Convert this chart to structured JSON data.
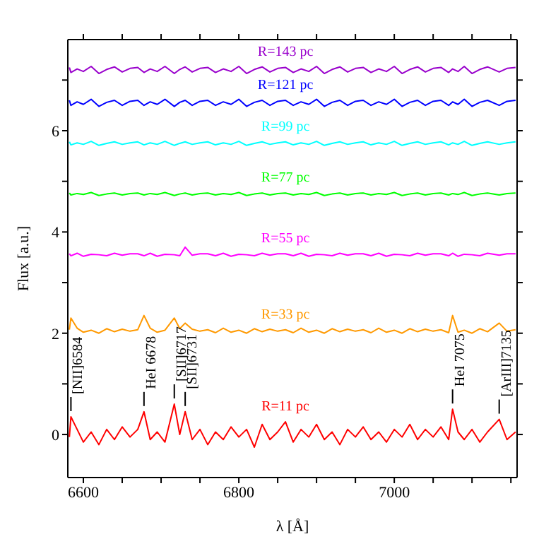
{
  "chart_data": {
    "type": "line",
    "xlabel": "λ [Å]",
    "ylabel": "Flux [a.u.]",
    "marker": "none",
    "xlim": [
      6580,
      7158
    ],
    "xticks": [
      6600,
      {
        "value": 6650,
        "label": null
      },
      {
        "value": 6700,
        "label": null
      },
      {
        "value": 6750,
        "label": null
      },
      6800,
      {
        "value": 6850,
        "label": null
      },
      {
        "value": 6900,
        "label": null
      },
      {
        "value": 6950,
        "label": null
      },
      7000,
      {
        "value": 7050,
        "label": null
      },
      {
        "value": 7100,
        "label": null
      },
      {
        "value": 7150,
        "label": null
      }
    ],
    "ylim": [
      -0.85,
      7.8
    ],
    "yticks": [
      0,
      {
        "value": 1,
        "label": null
      },
      2,
      {
        "value": 3,
        "label": null
      },
      4,
      {
        "value": 5,
        "label": null
      },
      6,
      {
        "value": 7,
        "label": null
      }
    ],
    "x": [
      6582,
      6584,
      6592,
      6600,
      6610,
      6620,
      6630,
      6640,
      6650,
      6660,
      6670,
      6678,
      6686,
      6695,
      6705,
      6717,
      6724,
      6731,
      6740,
      6750,
      6760,
      6770,
      6780,
      6790,
      6800,
      6810,
      6820,
      6830,
      6840,
      6850,
      6860,
      6870,
      6880,
      6890,
      6900,
      6910,
      6920,
      6930,
      6940,
      6950,
      6960,
      6970,
      6980,
      6990,
      7000,
      7010,
      7020,
      7030,
      7040,
      7050,
      7060,
      7070,
      7075,
      7082,
      7090,
      7100,
      7110,
      7120,
      7135,
      7145,
      7156
    ],
    "series": [
      {
        "name": "R=11 pc",
        "color": "#ff0000",
        "values": [
          -0.05,
          0.35,
          0.1,
          -0.15,
          0.05,
          -0.2,
          0.1,
          -0.1,
          0.15,
          -0.05,
          0.1,
          0.45,
          -0.1,
          0.05,
          -0.15,
          0.6,
          0.0,
          0.45,
          -0.1,
          0.1,
          -0.2,
          0.05,
          -0.1,
          0.15,
          -0.05,
          0.1,
          -0.25,
          0.2,
          -0.1,
          0.05,
          0.25,
          -0.15,
          0.1,
          -0.05,
          0.2,
          -0.1,
          0.05,
          -0.2,
          0.1,
          -0.05,
          0.15,
          -0.1,
          0.05,
          -0.15,
          0.1,
          -0.05,
          0.2,
          -0.1,
          0.1,
          -0.05,
          0.15,
          -0.1,
          0.5,
          0.05,
          -0.1,
          0.1,
          -0.15,
          0.05,
          0.3,
          -0.1,
          0.05
        ]
      },
      {
        "name": "R=33 pc",
        "color": "#ff9900",
        "values": [
          2.07,
          2.3,
          2.1,
          2.02,
          2.06,
          2.0,
          2.09,
          2.03,
          2.08,
          2.04,
          2.07,
          2.35,
          2.1,
          2.02,
          2.06,
          2.3,
          2.09,
          2.2,
          2.08,
          2.04,
          2.07,
          2.01,
          2.1,
          2.02,
          2.06,
          2.0,
          2.09,
          2.03,
          2.08,
          2.04,
          2.07,
          2.01,
          2.1,
          2.02,
          2.06,
          2.0,
          2.09,
          2.03,
          2.08,
          2.04,
          2.07,
          2.01,
          2.1,
          2.02,
          2.06,
          2.0,
          2.09,
          2.03,
          2.08,
          2.04,
          2.07,
          2.01,
          2.35,
          2.02,
          2.06,
          2.0,
          2.09,
          2.03,
          2.2,
          2.04,
          2.07
        ]
      },
      {
        "name": "R=55 pc",
        "color": "#ff00ff",
        "values": [
          3.57,
          3.53,
          3.58,
          3.52,
          3.56,
          3.55,
          3.53,
          3.58,
          3.54,
          3.57,
          3.57,
          3.53,
          3.58,
          3.52,
          3.56,
          3.55,
          3.53,
          3.7,
          3.54,
          3.57,
          3.57,
          3.53,
          3.58,
          3.52,
          3.56,
          3.55,
          3.53,
          3.58,
          3.54,
          3.57,
          3.57,
          3.53,
          3.58,
          3.52,
          3.56,
          3.55,
          3.53,
          3.58,
          3.54,
          3.57,
          3.57,
          3.53,
          3.58,
          3.52,
          3.56,
          3.55,
          3.53,
          3.58,
          3.54,
          3.57,
          3.57,
          3.53,
          3.58,
          3.52,
          3.56,
          3.55,
          3.53,
          3.58,
          3.54,
          3.57,
          3.57
        ]
      },
      {
        "name": "R=77 pc",
        "color": "#00ff00",
        "values": [
          4.77,
          4.73,
          4.76,
          4.74,
          4.78,
          4.72,
          4.75,
          4.77,
          4.73,
          4.76,
          4.77,
          4.73,
          4.76,
          4.74,
          4.78,
          4.72,
          4.75,
          4.77,
          4.73,
          4.76,
          4.77,
          4.73,
          4.76,
          4.74,
          4.78,
          4.72,
          4.75,
          4.77,
          4.73,
          4.76,
          4.77,
          4.73,
          4.76,
          4.74,
          4.78,
          4.72,
          4.75,
          4.77,
          4.73,
          4.76,
          4.77,
          4.73,
          4.76,
          4.74,
          4.78,
          4.72,
          4.75,
          4.77,
          4.73,
          4.76,
          4.77,
          4.73,
          4.76,
          4.74,
          4.78,
          4.72,
          4.75,
          4.77,
          4.73,
          4.76,
          4.77
        ]
      },
      {
        "name": "R=99 pc",
        "color": "#00ffff",
        "values": [
          5.78,
          5.72,
          5.76,
          5.73,
          5.79,
          5.71,
          5.75,
          5.78,
          5.73,
          5.76,
          5.78,
          5.72,
          5.76,
          5.73,
          5.79,
          5.71,
          5.75,
          5.78,
          5.73,
          5.76,
          5.78,
          5.72,
          5.76,
          5.73,
          5.79,
          5.71,
          5.75,
          5.78,
          5.73,
          5.76,
          5.78,
          5.72,
          5.76,
          5.73,
          5.79,
          5.71,
          5.75,
          5.78,
          5.73,
          5.76,
          5.78,
          5.72,
          5.76,
          5.73,
          5.79,
          5.71,
          5.75,
          5.78,
          5.73,
          5.76,
          5.78,
          5.72,
          5.76,
          5.73,
          5.79,
          5.71,
          5.75,
          5.78,
          5.73,
          5.76,
          5.78
        ]
      },
      {
        "name": "R=121 pc",
        "color": "#0000ff",
        "values": [
          6.6,
          6.5,
          6.57,
          6.52,
          6.62,
          6.48,
          6.56,
          6.6,
          6.5,
          6.58,
          6.6,
          6.5,
          6.57,
          6.52,
          6.62,
          6.48,
          6.56,
          6.6,
          6.5,
          6.58,
          6.6,
          6.5,
          6.57,
          6.52,
          6.62,
          6.48,
          6.56,
          6.6,
          6.5,
          6.58,
          6.6,
          6.5,
          6.57,
          6.52,
          6.62,
          6.48,
          6.56,
          6.6,
          6.5,
          6.58,
          6.6,
          6.5,
          6.57,
          6.52,
          6.62,
          6.48,
          6.56,
          6.6,
          6.5,
          6.58,
          6.6,
          6.5,
          6.57,
          6.52,
          6.62,
          6.48,
          6.56,
          6.6,
          6.5,
          6.58,
          6.6
        ]
      },
      {
        "name": "R=143 pc",
        "color": "#9900cc",
        "values": [
          7.25,
          7.15,
          7.22,
          7.17,
          7.27,
          7.13,
          7.21,
          7.26,
          7.16,
          7.23,
          7.25,
          7.15,
          7.22,
          7.17,
          7.27,
          7.13,
          7.21,
          7.26,
          7.16,
          7.23,
          7.25,
          7.15,
          7.22,
          7.17,
          7.27,
          7.13,
          7.21,
          7.26,
          7.16,
          7.23,
          7.25,
          7.15,
          7.22,
          7.17,
          7.27,
          7.13,
          7.21,
          7.26,
          7.16,
          7.23,
          7.25,
          7.15,
          7.22,
          7.17,
          7.27,
          7.13,
          7.21,
          7.26,
          7.16,
          7.23,
          7.25,
          7.15,
          7.22,
          7.17,
          7.27,
          7.13,
          7.21,
          7.26,
          7.16,
          7.23,
          7.25
        ]
      }
    ],
    "annotations": [
      {
        "text": "[NII]6584",
        "x": 6584,
        "y": 0.35
      },
      {
        "text": "HeI 6678",
        "x": 6678,
        "y": 0.45
      },
      {
        "text": "[SII]6717",
        "x": 6717,
        "y": 0.6
      },
      {
        "text": "[SII]6731",
        "x": 6731,
        "y": 0.45
      },
      {
        "text": "HeI 7075",
        "x": 7075,
        "y": 0.5
      },
      {
        "text": "[ArIII]7135",
        "x": 7135,
        "y": 0.3
      }
    ]
  }
}
